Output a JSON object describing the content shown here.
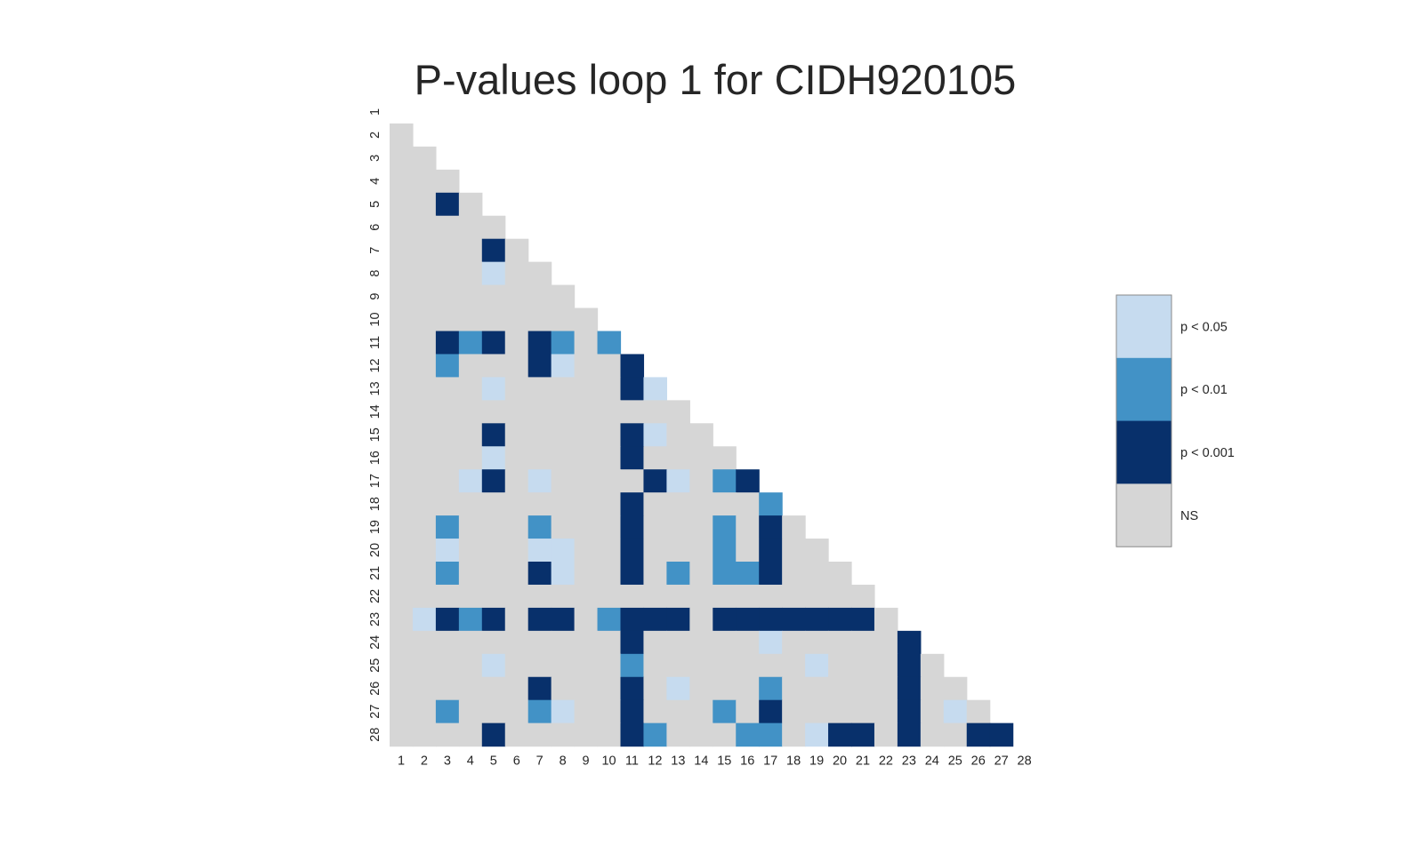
{
  "chart_data": {
    "type": "heatmap",
    "title": "P-values loop 1 for CIDH920105",
    "xlabel": "",
    "ylabel": "",
    "x_categories": [
      "1",
      "2",
      "3",
      "4",
      "5",
      "6",
      "7",
      "8",
      "9",
      "10",
      "11",
      "12",
      "13",
      "14",
      "15",
      "16",
      "17",
      "18",
      "19",
      "20",
      "21",
      "22",
      "23",
      "24",
      "25",
      "26",
      "27",
      "28"
    ],
    "y_categories": [
      "1",
      "2",
      "3",
      "4",
      "5",
      "6",
      "7",
      "8",
      "9",
      "10",
      "11",
      "12",
      "13",
      "14",
      "15",
      "16",
      "17",
      "18",
      "19",
      "20",
      "21",
      "22",
      "23",
      "24",
      "25",
      "26",
      "27",
      "28"
    ],
    "mask": "upper triangle including diagonal",
    "legend": {
      "placement": "right",
      "levels": [
        {
          "code": 3,
          "label": "p < 0.05",
          "color": "#c6dbef"
        },
        {
          "code": 2,
          "label": "p < 0.01",
          "color": "#4292c6"
        },
        {
          "code": 1,
          "label": "p < 0.001",
          "color": "#08306b"
        },
        {
          "code": 0,
          "label": "NS",
          "color": "#d6d6d6"
        }
      ]
    },
    "values": [
      [],
      [
        0
      ],
      [
        0,
        0
      ],
      [
        0,
        0,
        0
      ],
      [
        0,
        0,
        1,
        0
      ],
      [
        0,
        0,
        0,
        0,
        0
      ],
      [
        0,
        0,
        0,
        0,
        1,
        0
      ],
      [
        0,
        0,
        0,
        0,
        3,
        0,
        0
      ],
      [
        0,
        0,
        0,
        0,
        0,
        0,
        0,
        0
      ],
      [
        0,
        0,
        0,
        0,
        0,
        0,
        0,
        0,
        0
      ],
      [
        0,
        0,
        1,
        2,
        1,
        0,
        1,
        2,
        0,
        2
      ],
      [
        0,
        0,
        2,
        0,
        0,
        0,
        1,
        3,
        0,
        0,
        1
      ],
      [
        0,
        0,
        0,
        0,
        3,
        0,
        0,
        0,
        0,
        0,
        1,
        3
      ],
      [
        0,
        0,
        0,
        0,
        0,
        0,
        0,
        0,
        0,
        0,
        0,
        0,
        0
      ],
      [
        0,
        0,
        0,
        0,
        1,
        0,
        0,
        0,
        0,
        0,
        1,
        3,
        0,
        0
      ],
      [
        0,
        0,
        0,
        0,
        3,
        0,
        0,
        0,
        0,
        0,
        1,
        0,
        0,
        0,
        0
      ],
      [
        0,
        0,
        0,
        3,
        1,
        0,
        3,
        0,
        0,
        0,
        0,
        1,
        3,
        0,
        2,
        1
      ],
      [
        0,
        0,
        0,
        0,
        0,
        0,
        0,
        0,
        0,
        0,
        1,
        0,
        0,
        0,
        0,
        0,
        2
      ],
      [
        0,
        0,
        2,
        0,
        0,
        0,
        2,
        0,
        0,
        0,
        1,
        0,
        0,
        0,
        2,
        0,
        1,
        0
      ],
      [
        0,
        0,
        3,
        0,
        0,
        0,
        3,
        3,
        0,
        0,
        1,
        0,
        0,
        0,
        2,
        0,
        1,
        0,
        0
      ],
      [
        0,
        0,
        2,
        0,
        0,
        0,
        1,
        3,
        0,
        0,
        1,
        0,
        2,
        0,
        2,
        2,
        1,
        0,
        0,
        0
      ],
      [
        0,
        0,
        0,
        0,
        0,
        0,
        0,
        0,
        0,
        0,
        0,
        0,
        0,
        0,
        0,
        0,
        0,
        0,
        0,
        0,
        0
      ],
      [
        0,
        3,
        1,
        2,
        1,
        0,
        1,
        1,
        0,
        2,
        1,
        1,
        1,
        0,
        1,
        1,
        1,
        1,
        1,
        1,
        1,
        0
      ],
      [
        0,
        0,
        0,
        0,
        0,
        0,
        0,
        0,
        0,
        0,
        1,
        0,
        0,
        0,
        0,
        0,
        3,
        0,
        0,
        0,
        0,
        0,
        1
      ],
      [
        0,
        0,
        0,
        0,
        3,
        0,
        0,
        0,
        0,
        0,
        2,
        0,
        0,
        0,
        0,
        0,
        0,
        0,
        3,
        0,
        0,
        0,
        1,
        0
      ],
      [
        0,
        0,
        0,
        0,
        0,
        0,
        1,
        0,
        0,
        0,
        1,
        0,
        3,
        0,
        0,
        0,
        2,
        0,
        0,
        0,
        0,
        0,
        1,
        0,
        0
      ],
      [
        0,
        0,
        2,
        0,
        0,
        0,
        2,
        3,
        0,
        0,
        1,
        0,
        0,
        0,
        2,
        0,
        1,
        0,
        0,
        0,
        0,
        0,
        1,
        0,
        3,
        0
      ],
      [
        0,
        0,
        0,
        0,
        1,
        0,
        0,
        0,
        0,
        0,
        1,
        2,
        0,
        0,
        0,
        2,
        2,
        0,
        3,
        1,
        1,
        0,
        1,
        0,
        0,
        1,
        1
      ]
    ]
  }
}
